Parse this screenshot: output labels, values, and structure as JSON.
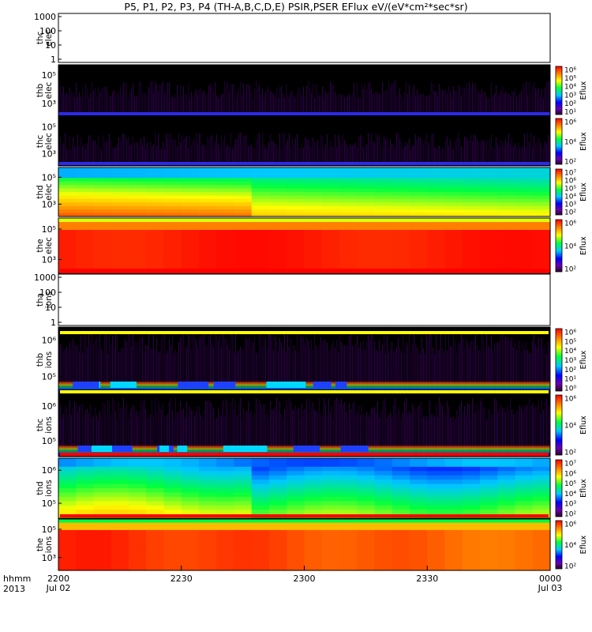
{
  "title": "P5, P1, P2, P3, P4 (TH-A,B,C,D,E) PSIR,PSER EFlux eV/(eV*cm²*sec*sr)",
  "x_axis": {
    "row_label": "hhmm",
    "year_label": "2013",
    "ticks": [
      {
        "t": 0,
        "label": "2200",
        "sub": "Jul 02"
      },
      {
        "t": 30,
        "label": "2230",
        "sub": ""
      },
      {
        "t": 60,
        "label": "2300",
        "sub": ""
      },
      {
        "t": 90,
        "label": "2330",
        "sub": ""
      },
      {
        "t": 120,
        "label": "0000",
        "sub": "Jul 03"
      }
    ]
  },
  "colorbar_title": "Eflux",
  "colors": {
    "background": "#ffffff",
    "red_bar": "#ff0000",
    "yellow_bar": "#ffff00",
    "missing": "#000000"
  },
  "chart_data": [
    {
      "type": "heatmap",
      "probe": "thc",
      "species": "elec",
      "ylabel": [
        "thc",
        "elec"
      ],
      "ylim": [
        1,
        2000
      ],
      "yscale": "log",
      "yticks": [
        "1000",
        "100",
        "10",
        "1"
      ],
      "has_data": false,
      "colorbar": null
    },
    {
      "type": "heatmap",
      "probe": "thb",
      "species": "elec",
      "ylabel": [
        "thb",
        "elec"
      ],
      "ylim": [
        10,
        300000
      ],
      "yscale": "log",
      "yticks": [
        "10⁵",
        "10³"
      ],
      "has_data": true,
      "pattern": "noise",
      "colorbar": {
        "ticks": [
          "10⁶",
          "10⁵",
          "10⁴",
          "10³",
          "10²",
          "10¹"
        ]
      }
    },
    {
      "type": "heatmap",
      "probe": "thc",
      "species": "elec",
      "ylabel": [
        "thc",
        "elec"
      ],
      "ylim": [
        10,
        300000
      ],
      "yscale": "log",
      "yticks": [
        "10⁵",
        "10³"
      ],
      "has_data": true,
      "pattern": "noise",
      "colorbar": {
        "ticks": [
          "10⁶",
          "10⁴",
          "10²"
        ]
      }
    },
    {
      "type": "heatmap",
      "probe": "thd",
      "species": "elec",
      "ylabel": [
        "thd",
        "elec"
      ],
      "ylim": [
        10,
        300000
      ],
      "yscale": "log",
      "yticks": [
        "10⁵",
        "10³"
      ],
      "has_data": true,
      "pattern": "smooth_elec_d",
      "colorbar": {
        "ticks": [
          "10⁷",
          "10⁶",
          "10⁵",
          "10⁴",
          "10³",
          "10²"
        ]
      }
    },
    {
      "type": "heatmap",
      "probe": "the",
      "species": "elec",
      "ylabel": [
        "the",
        "elec"
      ],
      "ylim": [
        10,
        300000
      ],
      "yscale": "log",
      "yticks": [
        "10⁵",
        "10³"
      ],
      "has_data": true,
      "pattern": "smooth_elec_e",
      "colorbar": {
        "ticks": [
          "10⁶",
          "10⁴",
          "10²"
        ]
      }
    },
    {
      "type": "heatmap",
      "probe": "tha",
      "species": "ions",
      "ylabel": [
        "tha",
        "ions"
      ],
      "ylim": [
        1,
        2000
      ],
      "yscale": "log",
      "yticks": [
        "1000",
        "100",
        "10",
        "1"
      ],
      "has_data": false,
      "colorbar": null
    },
    {
      "type": "heatmap",
      "probe": "thb",
      "species": "ions",
      "ylabel": [
        "thb",
        "ions"
      ],
      "ylim": [
        10,
        3000000
      ],
      "yscale": "log",
      "yticks": [
        "10⁶",
        "10⁵"
      ],
      "has_data": true,
      "pattern": "noise_ions",
      "colorbar": {
        "ticks": [
          "10⁶",
          "10⁵",
          "10⁴",
          "10³",
          "10²",
          "10¹",
          "10⁰"
        ]
      }
    },
    {
      "type": "heatmap",
      "probe": "thc",
      "species": "ions",
      "ylabel": [
        "thc",
        "ions"
      ],
      "ylim": [
        10,
        3000000
      ],
      "yscale": "log",
      "yticks": [
        "10⁶",
        "10⁵"
      ],
      "has_data": true,
      "pattern": "noise_ions",
      "colorbar": {
        "ticks": [
          "10⁶",
          "10⁴",
          "10²"
        ]
      }
    },
    {
      "type": "heatmap",
      "probe": "thd",
      "species": "ions",
      "ylabel": [
        "thd",
        "ions"
      ],
      "ylim": [
        10,
        3000000
      ],
      "yscale": "log",
      "yticks": [
        "10⁶",
        "10⁵"
      ],
      "has_data": true,
      "pattern": "smooth_ions_d",
      "colorbar": {
        "ticks": [
          "10⁷",
          "10⁶",
          "10⁵",
          "10⁴",
          "10³",
          "10²"
        ]
      }
    },
    {
      "type": "heatmap",
      "probe": "the",
      "species": "ions",
      "ylabel": [
        "the",
        "ions"
      ],
      "ylim": [
        10,
        3000000
      ],
      "yscale": "log",
      "yticks": [
        "10⁵",
        "10³"
      ],
      "has_data": true,
      "pattern": "smooth_ions_e",
      "colorbar": {
        "ticks": [
          "10⁶",
          "10⁴",
          "10²"
        ]
      }
    }
  ]
}
